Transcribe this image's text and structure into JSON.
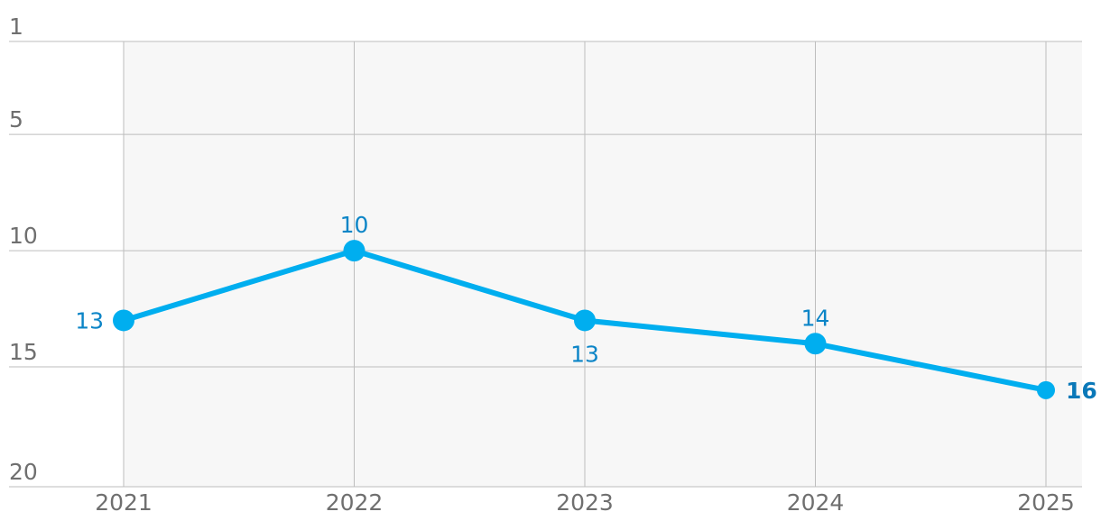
{
  "chart_data": {
    "type": "line",
    "title": "",
    "xlabel": "",
    "ylabel": "",
    "categories": [
      "2021",
      "2022",
      "2023",
      "2024",
      "2025"
    ],
    "series": [
      {
        "values": [
          13,
          10,
          13,
          14,
          16
        ],
        "color": "#00aeef"
      }
    ],
    "point_labels": [
      "13",
      "10",
      "13",
      "14",
      "16"
    ],
    "y_ticks": [
      "1",
      "5",
      "10",
      "15",
      "20"
    ],
    "y_tick_values": [
      1,
      5,
      10,
      15,
      20
    ],
    "ylim": [
      1,
      20
    ],
    "y_inverted": true,
    "grid": true,
    "plot_background": "#f7f7f7",
    "grid_color": "#bdbdbd",
    "label_color": "#0c85c7",
    "tick_color": "#6f6f6f"
  }
}
